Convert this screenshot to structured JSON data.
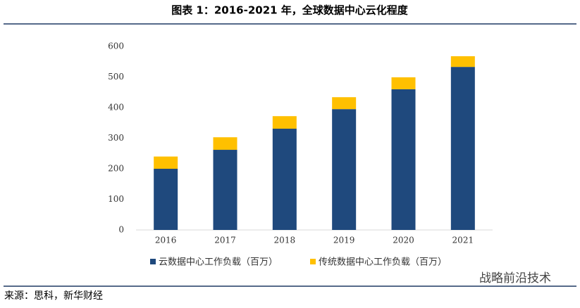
{
  "chart_data": {
    "type": "stacked_bar",
    "title": "图表 1：2016-2021 年，全球数据中心云化程度",
    "categories": [
      "2016",
      "2017",
      "2018",
      "2019",
      "2020",
      "2021"
    ],
    "series": [
      {
        "name": "云数据中心工作负载（百万）",
        "color": "#1f497d",
        "values": [
          200,
          262,
          331,
          395,
          460,
          533
        ]
      },
      {
        "name": "传统数据中心工作负载（百万）",
        "color": "#ffc000",
        "values": [
          40,
          41,
          41,
          39,
          39,
          35
        ]
      }
    ],
    "ylim": [
      0,
      600
    ],
    "yticks": [
      0,
      100,
      200,
      300,
      400,
      500,
      600
    ],
    "grid": false
  },
  "source": "来源：思科，新华财经",
  "watermark": "战略前沿技术"
}
